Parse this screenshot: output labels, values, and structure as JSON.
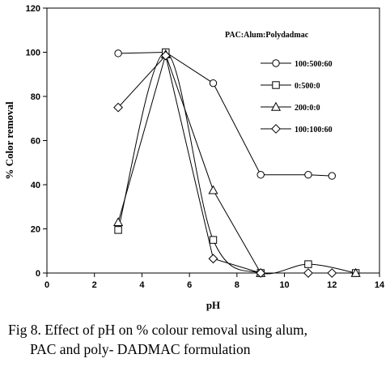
{
  "chart_data": {
    "type": "line",
    "title": "",
    "xlabel": "pH",
    "ylabel": "% Color removal",
    "xlim": [
      0,
      14
    ],
    "ylim": [
      0,
      120
    ],
    "xticks": [
      0,
      2,
      4,
      6,
      8,
      10,
      12,
      14
    ],
    "yticks": [
      0,
      20,
      40,
      60,
      80,
      100,
      120
    ],
    "grid": false,
    "legend_title": "PAC:Alum:Polydadmac",
    "legend_position": "top-right",
    "series": [
      {
        "name": "100:500:60",
        "marker": "circle",
        "points": [
          [
            3,
            99.5
          ],
          [
            5,
            100
          ],
          [
            7,
            86
          ],
          [
            9,
            44.5
          ],
          [
            11,
            44.5
          ],
          [
            12,
            44
          ]
        ]
      },
      {
        "name": "0:500:0",
        "marker": "square",
        "points": [
          [
            3,
            19.5
          ],
          [
            5,
            100
          ],
          [
            7,
            15
          ],
          [
            9,
            0
          ],
          [
            11,
            4
          ],
          [
            13,
            0
          ]
        ]
      },
      {
        "name": "200:0:0",
        "marker": "triangle",
        "points": [
          [
            3,
            23
          ],
          [
            5,
            99
          ],
          [
            7,
            37.5
          ],
          [
            9,
            0
          ],
          [
            13,
            0
          ]
        ]
      },
      {
        "name": "100:100:60",
        "marker": "diamond",
        "points": [
          [
            3,
            75
          ],
          [
            5,
            98.5
          ],
          [
            7,
            6.5
          ],
          [
            9,
            0
          ],
          [
            11,
            0
          ],
          [
            12,
            0
          ]
        ]
      }
    ]
  },
  "caption": {
    "line1": "Fig 8. Effect of pH on % colour removal using alum,",
    "line2": "PAC and poly- DADMAC  formulation"
  }
}
